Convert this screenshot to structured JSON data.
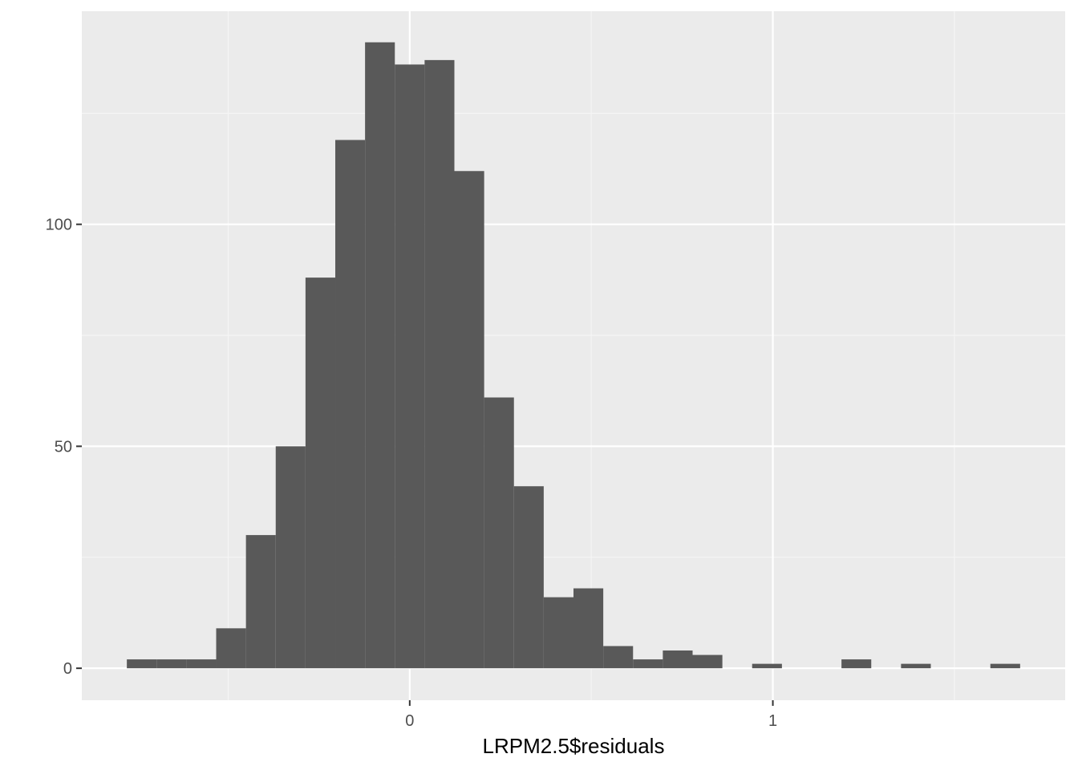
{
  "chart_data": {
    "type": "bar",
    "subtype": "histogram",
    "title": "",
    "xlabel": "LRPM2.5$residuals",
    "ylabel": "",
    "xlim": [
      -0.903,
      1.805
    ],
    "ylim": [
      -7.2,
      148
    ],
    "x_ticks": [
      {
        "value": 0,
        "label": "0"
      },
      {
        "value": 1,
        "label": "1"
      }
    ],
    "x_minor_ticks": [
      -0.5,
      0.5,
      1.5
    ],
    "y_ticks": [
      {
        "value": 0,
        "label": "0"
      },
      {
        "value": 50,
        "label": "50"
      },
      {
        "value": 100,
        "label": "100"
      }
    ],
    "y_minor_ticks": [
      25,
      75,
      125
    ],
    "bin_width": 0.082,
    "bins": [
      {
        "x0": -0.779,
        "x1": -0.697,
        "count": 2
      },
      {
        "x0": -0.697,
        "x1": -0.615,
        "count": 2
      },
      {
        "x0": -0.615,
        "x1": -0.533,
        "count": 2
      },
      {
        "x0": -0.533,
        "x1": -0.451,
        "count": 9
      },
      {
        "x0": -0.451,
        "x1": -0.369,
        "count": 30
      },
      {
        "x0": -0.369,
        "x1": -0.287,
        "count": 50
      },
      {
        "x0": -0.287,
        "x1": -0.205,
        "count": 88
      },
      {
        "x0": -0.205,
        "x1": -0.123,
        "count": 119
      },
      {
        "x0": -0.123,
        "x1": -0.041,
        "count": 141
      },
      {
        "x0": -0.041,
        "x1": 0.041,
        "count": 136
      },
      {
        "x0": 0.041,
        "x1": 0.123,
        "count": 137
      },
      {
        "x0": 0.123,
        "x1": 0.205,
        "count": 112
      },
      {
        "x0": 0.205,
        "x1": 0.287,
        "count": 61
      },
      {
        "x0": 0.287,
        "x1": 0.369,
        "count": 41
      },
      {
        "x0": 0.369,
        "x1": 0.451,
        "count": 16
      },
      {
        "x0": 0.451,
        "x1": 0.533,
        "count": 18
      },
      {
        "x0": 0.533,
        "x1": 0.615,
        "count": 5
      },
      {
        "x0": 0.615,
        "x1": 0.697,
        "count": 2
      },
      {
        "x0": 0.697,
        "x1": 0.779,
        "count": 4
      },
      {
        "x0": 0.779,
        "x1": 0.861,
        "count": 3
      },
      {
        "x0": 0.861,
        "x1": 0.943,
        "count": 0
      },
      {
        "x0": 0.943,
        "x1": 1.025,
        "count": 1
      },
      {
        "x0": 1.025,
        "x1": 1.107,
        "count": 0
      },
      {
        "x0": 1.107,
        "x1": 1.189,
        "count": 0
      },
      {
        "x0": 1.189,
        "x1": 1.271,
        "count": 2
      },
      {
        "x0": 1.271,
        "x1": 1.353,
        "count": 0
      },
      {
        "x0": 1.353,
        "x1": 1.435,
        "count": 1
      },
      {
        "x0": 1.435,
        "x1": 1.517,
        "count": 0
      },
      {
        "x0": 1.517,
        "x1": 1.599,
        "count": 0
      },
      {
        "x0": 1.599,
        "x1": 1.681,
        "count": 1
      }
    ],
    "grid": true,
    "legend": "none",
    "colors": {
      "panel_background": "#ebebeb",
      "grid_major": "#ffffff",
      "grid_minor": "#f5f5f5",
      "bar_fill": "#595959",
      "tick_mark": "#333333",
      "tick_label": "#4d4d4d"
    }
  }
}
